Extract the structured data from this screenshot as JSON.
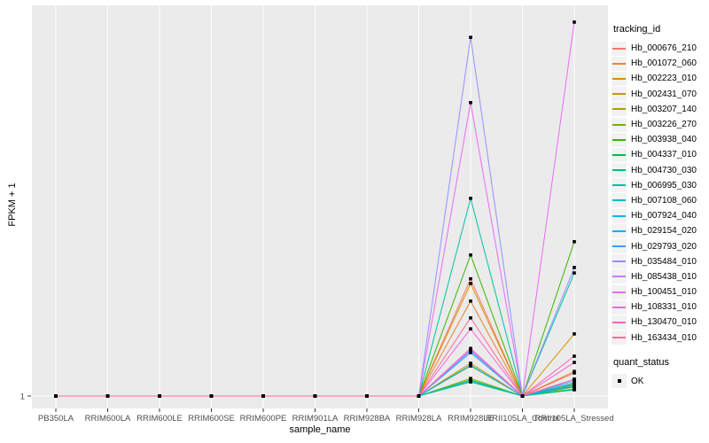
{
  "chart_data": {
    "type": "line",
    "title": "",
    "xlabel": "sample_name",
    "ylabel": "FPKM + 1",
    "y_tick_labels": [
      "1"
    ],
    "y_axis_type": "single labeled break at 1 (baseline); series heights given as fraction of panel height above baseline",
    "ylim": [
      0,
      1
    ],
    "grid": "vertical white gridline per category, horizontal white gridline at y=1",
    "legend_position": "right",
    "x_categories": [
      "PB350LA",
      "RRIM600LA",
      "RRIM600LE",
      "RRIM600SE",
      "RRIM600PE",
      "RRIM901LA",
      "RRIM928BA",
      "RRIM928LA",
      "RRIM928LE",
      "RRII105LA_Control",
      "RRII105LA_Stressed"
    ],
    "point_marker": "square",
    "point_color": "#000000",
    "series": [
      {
        "name": "Hb_000676_210",
        "color": "#F8766D",
        "values": [
          0,
          0,
          0,
          0,
          0,
          0,
          0,
          0,
          0.3,
          0,
          0.059
        ]
      },
      {
        "name": "Hb_001072_060",
        "color": "#EA8331",
        "values": [
          0,
          0,
          0,
          0,
          0,
          0,
          0,
          0,
          0.243,
          0,
          0.063
        ]
      },
      {
        "name": "Hb_002223_010",
        "color": "#D89000",
        "values": [
          0,
          0,
          0,
          0,
          0,
          0,
          0,
          0,
          0.288,
          0,
          0.159
        ]
      },
      {
        "name": "Hb_002431_070",
        "color": "#C09B00",
        "values": [
          0,
          0,
          0,
          0,
          0,
          0,
          0,
          0,
          0.084,
          0,
          0.032
        ]
      },
      {
        "name": "Hb_003207_140",
        "color": "#A3A500",
        "values": [
          0,
          0,
          0,
          0,
          0,
          0,
          0,
          0,
          0.077,
          0,
          0.027
        ]
      },
      {
        "name": "Hb_003226_270",
        "color": "#7CAE00",
        "values": [
          0,
          0,
          0,
          0,
          0,
          0,
          0,
          0,
          0.045,
          0,
          0.023
        ]
      },
      {
        "name": "Hb_003938_040",
        "color": "#39B600",
        "values": [
          0,
          0,
          0,
          0,
          0,
          0,
          0,
          0,
          0.361,
          0,
          0.395
        ]
      },
      {
        "name": "Hb_004337_010",
        "color": "#00BB4E",
        "values": [
          0,
          0,
          0,
          0,
          0,
          0,
          0,
          0,
          0.041,
          0,
          0.018
        ]
      },
      {
        "name": "Hb_004730_030",
        "color": "#00BF7D",
        "values": [
          0,
          0,
          0,
          0,
          0,
          0,
          0,
          0,
          0.036,
          0,
          0.016
        ]
      },
      {
        "name": "Hb_006995_030",
        "color": "#00C1A3",
        "values": [
          0,
          0,
          0,
          0,
          0,
          0,
          0,
          0,
          0.506,
          0,
          0.315
        ]
      },
      {
        "name": "Hb_007108_060",
        "color": "#00BFC4",
        "values": [
          0,
          0,
          0,
          0,
          0,
          0,
          0,
          0,
          0.039,
          0,
          0.025
        ]
      },
      {
        "name": "Hb_007924_040",
        "color": "#00BAE0",
        "values": [
          0,
          0,
          0,
          0,
          0,
          0,
          0,
          0,
          0.116,
          0,
          0.034
        ]
      },
      {
        "name": "Hb_029154_020",
        "color": "#00B0F6",
        "values": [
          0,
          0,
          0,
          0,
          0,
          0,
          0,
          0,
          0.079,
          0,
          0.029
        ]
      },
      {
        "name": "Hb_029793_020",
        "color": "#35A2FF",
        "values": [
          0,
          0,
          0,
          0,
          0,
          0,
          0,
          0,
          0.111,
          0,
          0.039
        ]
      },
      {
        "name": "Hb_035484_010",
        "color": "#9590FF",
        "values": [
          0,
          0,
          0,
          0,
          0,
          0,
          0,
          0,
          0.918,
          0,
          0.329
        ]
      },
      {
        "name": "Hb_085438_010",
        "color": "#C77CFF",
        "values": [
          0,
          0,
          0,
          0,
          0,
          0,
          0,
          0,
          0.118,
          0,
          0.043
        ]
      },
      {
        "name": "Hb_100451_010",
        "color": "#E76BF3",
        "values": [
          0,
          0,
          0,
          0,
          0,
          0,
          0,
          0,
          0.751,
          0,
          0.957
        ]
      },
      {
        "name": "Hb_108331_010",
        "color": "#FA62DB",
        "values": [
          0,
          0,
          0,
          0,
          0,
          0,
          0,
          0,
          0.172,
          0,
          0.086
        ]
      },
      {
        "name": "Hb_130470_010",
        "color": "#FF62BC",
        "values": [
          0,
          0,
          0,
          0,
          0,
          0,
          0,
          0,
          0.122,
          0,
          0.102
        ]
      },
      {
        "name": "Hb_163434_010",
        "color": "#FF6A98",
        "values": [
          0,
          0,
          0,
          0,
          0,
          0,
          0,
          0,
          0.2,
          0,
          0.043
        ]
      }
    ],
    "legend": {
      "tracking_title": "tracking_id",
      "quant_title": "quant_status",
      "quant_items": [
        "OK"
      ]
    },
    "colors": {
      "panel_bg": "#EBEBEB",
      "grid": "#FFFFFF",
      "tick_text": "#4D4D4D",
      "title_text": "#000000",
      "legend_key_bg": "#F2F2F2"
    }
  }
}
